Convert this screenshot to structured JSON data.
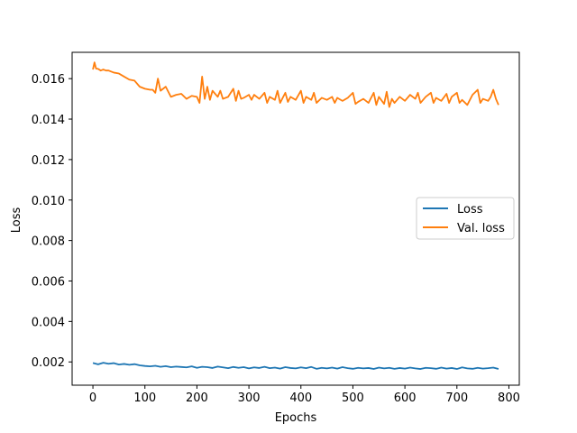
{
  "chart_data": {
    "type": "line",
    "title": "",
    "xlabel": "Epochs",
    "ylabel": "Loss",
    "xlim": [
      -40,
      820
    ],
    "ylim": [
      0.00085,
      0.0173
    ],
    "xticks": [
      0,
      100,
      200,
      300,
      400,
      500,
      600,
      700,
      800
    ],
    "xtick_labels": [
      "0",
      "100",
      "200",
      "300",
      "400",
      "500",
      "600",
      "700",
      "800"
    ],
    "yticks": [
      0.002,
      0.004,
      0.006,
      0.008,
      0.01,
      0.012,
      0.014,
      0.016
    ],
    "ytick_labels": [
      "0.002",
      "0.004",
      "0.006",
      "0.008",
      "0.010",
      "0.012",
      "0.014",
      "0.016"
    ],
    "grid": false,
    "legend_position": "center-right",
    "series": [
      {
        "name": "Loss",
        "color": "#1f77b4",
        "x": [
          0,
          10,
          20,
          30,
          40,
          50,
          60,
          70,
          80,
          90,
          100,
          110,
          120,
          130,
          140,
          150,
          160,
          170,
          180,
          190,
          200,
          210,
          220,
          230,
          240,
          250,
          260,
          270,
          280,
          290,
          300,
          310,
          320,
          330,
          340,
          350,
          360,
          370,
          380,
          390,
          400,
          410,
          420,
          430,
          440,
          450,
          460,
          470,
          480,
          490,
          500,
          510,
          520,
          530,
          540,
          550,
          560,
          570,
          580,
          590,
          600,
          610,
          620,
          630,
          640,
          650,
          660,
          670,
          680,
          690,
          700,
          710,
          720,
          730,
          740,
          750,
          760,
          770,
          780
        ],
        "values": [
          0.00195,
          0.00188,
          0.00196,
          0.00191,
          0.00194,
          0.00187,
          0.0019,
          0.00186,
          0.00189,
          0.00183,
          0.0018,
          0.00178,
          0.00181,
          0.00176,
          0.00179,
          0.00174,
          0.00177,
          0.00175,
          0.00173,
          0.00178,
          0.00171,
          0.00176,
          0.00174,
          0.0017,
          0.00177,
          0.00173,
          0.00169,
          0.00175,
          0.00171,
          0.00174,
          0.00168,
          0.00173,
          0.0017,
          0.00176,
          0.00169,
          0.00172,
          0.00167,
          0.00174,
          0.0017,
          0.00168,
          0.00173,
          0.00169,
          0.00175,
          0.00166,
          0.00171,
          0.00168,
          0.00172,
          0.00167,
          0.00174,
          0.00169,
          0.00166,
          0.00171,
          0.00168,
          0.0017,
          0.00165,
          0.00172,
          0.00168,
          0.00171,
          0.00166,
          0.0017,
          0.00167,
          0.00172,
          0.00168,
          0.00165,
          0.00171,
          0.00169,
          0.00166,
          0.00172,
          0.00167,
          0.0017,
          0.00165,
          0.00173,
          0.00168,
          0.00166,
          0.00171,
          0.00167,
          0.00169,
          0.00172,
          0.00165
        ]
      },
      {
        "name": "Val. loss",
        "color": "#ff7f0e",
        "x": [
          0,
          3,
          6,
          10,
          15,
          20,
          25,
          30,
          40,
          50,
          60,
          70,
          80,
          90,
          100,
          110,
          115,
          120,
          125,
          130,
          140,
          150,
          160,
          170,
          180,
          190,
          200,
          205,
          210,
          215,
          220,
          225,
          230,
          240,
          245,
          250,
          260,
          270,
          275,
          280,
          285,
          290,
          300,
          305,
          310,
          320,
          330,
          335,
          340,
          350,
          355,
          360,
          370,
          375,
          380,
          390,
          400,
          405,
          410,
          420,
          425,
          430,
          440,
          450,
          460,
          465,
          470,
          480,
          490,
          500,
          505,
          510,
          520,
          530,
          540,
          545,
          550,
          560,
          565,
          570,
          575,
          580,
          590,
          600,
          610,
          620,
          625,
          630,
          640,
          650,
          655,
          660,
          670,
          680,
          685,
          690,
          700,
          705,
          710,
          720,
          730,
          740,
          745,
          750,
          760,
          765,
          770,
          775,
          780
        ],
        "values": [
          0.01645,
          0.0168,
          0.0165,
          0.01648,
          0.0164,
          0.01645,
          0.0164,
          0.0164,
          0.0163,
          0.01625,
          0.0161,
          0.01595,
          0.0159,
          0.0156,
          0.0155,
          0.01545,
          0.01545,
          0.0153,
          0.016,
          0.0154,
          0.0156,
          0.0151,
          0.0152,
          0.01525,
          0.015,
          0.01515,
          0.0151,
          0.0148,
          0.0161,
          0.015,
          0.0156,
          0.01495,
          0.0154,
          0.0151,
          0.0154,
          0.015,
          0.0151,
          0.0155,
          0.0149,
          0.0154,
          0.015,
          0.01505,
          0.0152,
          0.01495,
          0.0152,
          0.015,
          0.0153,
          0.0148,
          0.0151,
          0.01495,
          0.0154,
          0.0148,
          0.0153,
          0.01485,
          0.0151,
          0.01495,
          0.0154,
          0.0148,
          0.0151,
          0.01495,
          0.0153,
          0.0148,
          0.01505,
          0.01495,
          0.0151,
          0.0148,
          0.01505,
          0.0149,
          0.01505,
          0.0153,
          0.01475,
          0.01485,
          0.015,
          0.0148,
          0.0153,
          0.0147,
          0.0151,
          0.01475,
          0.01535,
          0.0146,
          0.015,
          0.0148,
          0.0151,
          0.0149,
          0.0152,
          0.015,
          0.0153,
          0.0148,
          0.0151,
          0.0153,
          0.0148,
          0.01505,
          0.0149,
          0.01525,
          0.0148,
          0.0151,
          0.0153,
          0.0148,
          0.01495,
          0.0147,
          0.0152,
          0.01545,
          0.0148,
          0.015,
          0.0149,
          0.0151,
          0.01545,
          0.015,
          0.0147
        ]
      }
    ]
  }
}
